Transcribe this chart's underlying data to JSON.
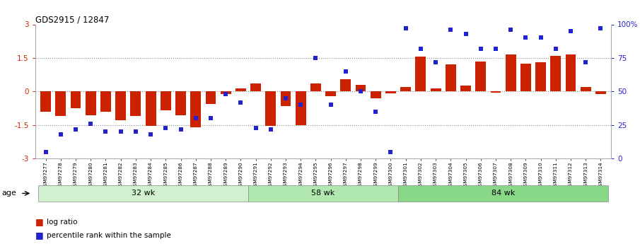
{
  "title": "GDS2915 / 12847",
  "samples": [
    "GSM97277",
    "GSM97278",
    "GSM97279",
    "GSM97280",
    "GSM97281",
    "GSM97282",
    "GSM97283",
    "GSM97284",
    "GSM97285",
    "GSM97286",
    "GSM97287",
    "GSM97288",
    "GSM97289",
    "GSM97290",
    "GSM97291",
    "GSM97292",
    "GSM97293",
    "GSM97294",
    "GSM97295",
    "GSM97296",
    "GSM97297",
    "GSM97298",
    "GSM97299",
    "GSM97300",
    "GSM97301",
    "GSM97302",
    "GSM97303",
    "GSM97304",
    "GSM97305",
    "GSM97306",
    "GSM97307",
    "GSM97308",
    "GSM97309",
    "GSM97310",
    "GSM97311",
    "GSM97312",
    "GSM97313",
    "GSM97314"
  ],
  "log_ratio": [
    -0.9,
    -1.1,
    -0.75,
    -1.05,
    -0.9,
    -1.3,
    -1.1,
    -1.55,
    -0.85,
    -1.05,
    -1.6,
    -0.55,
    -0.1,
    0.15,
    0.35,
    -1.55,
    -0.65,
    -1.5,
    0.35,
    -0.2,
    0.55,
    0.3,
    -0.3,
    -0.08,
    0.2,
    1.55,
    0.15,
    1.2,
    0.25,
    1.35,
    -0.05,
    1.65,
    1.25,
    1.3,
    1.6,
    1.65,
    0.2,
    -0.1
  ],
  "percentile": [
    5,
    18,
    22,
    26,
    20,
    20,
    20,
    18,
    23,
    22,
    30,
    30,
    48,
    42,
    23,
    22,
    45,
    40,
    75,
    40,
    65,
    50,
    35,
    5,
    97,
    82,
    72,
    96,
    93,
    82,
    82,
    96,
    90,
    90,
    82,
    95,
    72,
    97
  ],
  "groups": [
    {
      "label": "32 wk",
      "start": 0,
      "end": 13,
      "color": "#d0f0d0"
    },
    {
      "label": "58 wk",
      "start": 14,
      "end": 23,
      "color": "#b0e8b0"
    },
    {
      "label": "84 wk",
      "start": 24,
      "end": 37,
      "color": "#88d888"
    }
  ],
  "ylim": [
    -3,
    3
  ],
  "y2lim": [
    0,
    100
  ],
  "yticks_left": [
    -3,
    -1.5,
    0,
    1.5,
    3
  ],
  "yticks_right": [
    0,
    25,
    50,
    75,
    100
  ],
  "bar_color": "#cc2200",
  "dot_color": "#2222cc",
  "hlines": [
    -1.5,
    0.0,
    1.5
  ],
  "legend_bar": "log ratio",
  "legend_dot": "percentile rank within the sample",
  "age_label": "age"
}
